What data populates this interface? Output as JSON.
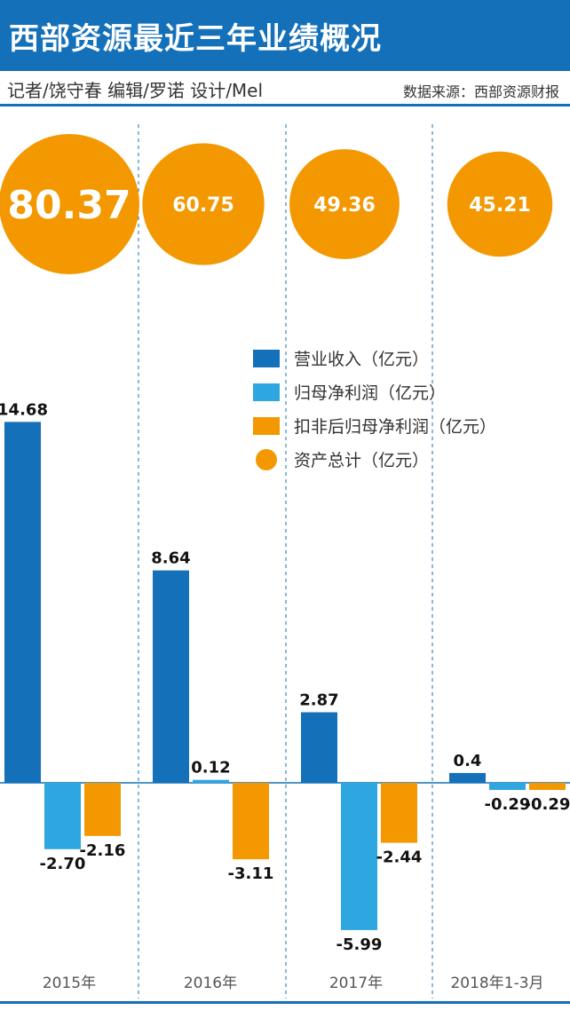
{
  "header": {
    "title": "西部资源最近三年业绩概况",
    "credits": "记者/饶守春  编辑/罗诺  设计/Mel",
    "source": "数据来源：西部资源财报"
  },
  "colors": {
    "header_blue": "#1470b8",
    "revenue": "#1470b8",
    "net_profit": "#2ea7e0",
    "deducted_profit": "#f39800",
    "total_assets": "#f39800"
  },
  "chart_data": {
    "type": "bar",
    "categories": [
      "2015年",
      "2016年",
      "2017年",
      "2018年1-3月"
    ],
    "series": [
      {
        "name": "营业收入（亿元）",
        "values": [
          14.68,
          8.64,
          2.87,
          0.4
        ],
        "labels": [
          "14.68",
          "8.64",
          "2.87",
          "0.4"
        ],
        "color": "#1470b8"
      },
      {
        "name": "归母净利润（亿元）",
        "values": [
          -2.7,
          0.12,
          -5.99,
          -0.29
        ],
        "labels": [
          "-2.70",
          "0.12",
          "-5.99",
          "-0.29"
        ],
        "color": "#2ea7e0"
      },
      {
        "name": "扣非后归母净利润（亿元）",
        "values": [
          -2.16,
          -3.11,
          -2.44,
          -0.29
        ],
        "labels": [
          "-2.16",
          "-3.11",
          "-2.44",
          "-0.29"
        ],
        "color": "#f39800"
      }
    ],
    "bubbles": {
      "name": "资产总计（亿元）",
      "values": [
        80.37,
        60.75,
        49.36,
        45.21
      ],
      "labels": [
        "80.37",
        "60.75",
        "49.36",
        "45.21"
      ],
      "color": "#f39800"
    },
    "legend_position": "center-right",
    "grid": false
  }
}
